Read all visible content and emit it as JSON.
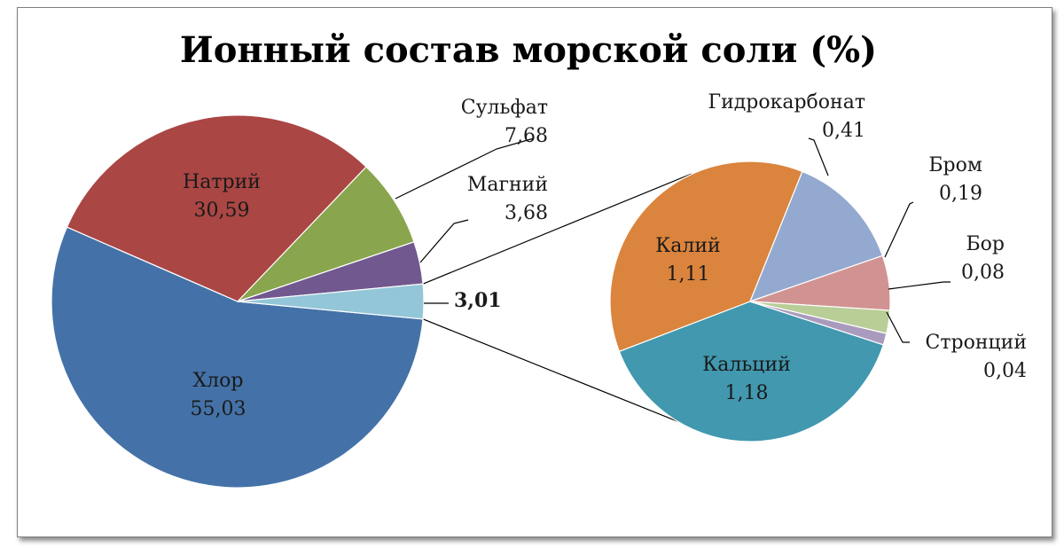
{
  "chart_data": {
    "type": "pie",
    "subtype": "pie-of-pie",
    "title": "Ионный состав морской соли (%)",
    "main_pie": {
      "slices": [
        {
          "name": "Хлор",
          "value": 55.03,
          "label": "55,03",
          "color": "#4472a8"
        },
        {
          "name": "Натрий",
          "value": 30.59,
          "label": "30,59",
          "color": "#aa4644"
        },
        {
          "name": "Сульфат",
          "value": 7.68,
          "label": "7,68",
          "color": "#89a54e"
        },
        {
          "name": "Магний",
          "value": 3.68,
          "label": "3,68",
          "color": "#71588f"
        },
        {
          "name": "",
          "value": 3.01,
          "label": "3,01",
          "color": "#93c6d8",
          "is_other": true
        }
      ]
    },
    "secondary_pie": {
      "slices": [
        {
          "name": "Кальций",
          "value": 1.18,
          "label": "1,18",
          "color": "#4198af"
        },
        {
          "name": "Калий",
          "value": 1.11,
          "label": "1,11",
          "color": "#db843d"
        },
        {
          "name": "Гидрокарбонат",
          "value": 0.41,
          "label": "0,41",
          "color": "#93a9cf"
        },
        {
          "name": "Бром",
          "value": 0.19,
          "label": "0,19",
          "color": "#d19392"
        },
        {
          "name": "Бор",
          "value": 0.08,
          "label": "0,08",
          "color": "#b9cd96"
        },
        {
          "name": "Стронций",
          "value": 0.04,
          "label": "0,04",
          "color": "#a99bbd"
        }
      ]
    },
    "legend": "none"
  }
}
